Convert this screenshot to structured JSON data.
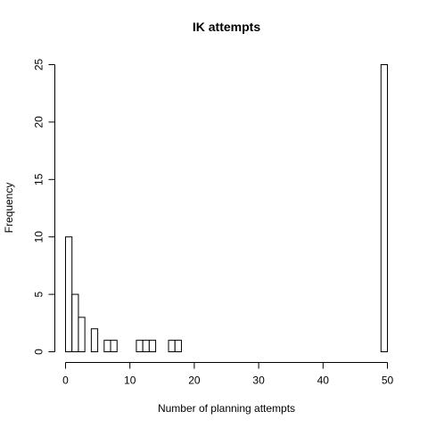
{
  "chart_data": {
    "type": "bar",
    "title": "IK attempts",
    "xlabel": "Number of planning attempts",
    "ylabel": "Frequency",
    "bin_width": 1,
    "xlim": [
      0,
      50
    ],
    "ylim": [
      0,
      25
    ],
    "x_ticks": [
      0,
      10,
      20,
      30,
      40,
      50
    ],
    "y_ticks": [
      0,
      5,
      10,
      15,
      20,
      25
    ],
    "bins": [
      {
        "x0": 0,
        "x1": 1,
        "count": 10
      },
      {
        "x0": 1,
        "x1": 2,
        "count": 5
      },
      {
        "x0": 2,
        "x1": 3,
        "count": 3
      },
      {
        "x0": 4,
        "x1": 5,
        "count": 2
      },
      {
        "x0": 6,
        "x1": 7,
        "count": 1
      },
      {
        "x0": 7,
        "x1": 8,
        "count": 1
      },
      {
        "x0": 11,
        "x1": 12,
        "count": 1
      },
      {
        "x0": 12,
        "x1": 13,
        "count": 1
      },
      {
        "x0": 13,
        "x1": 14,
        "count": 1
      },
      {
        "x0": 16,
        "x1": 17,
        "count": 1
      },
      {
        "x0": 17,
        "x1": 18,
        "count": 1
      },
      {
        "x0": 49,
        "x1": 50,
        "count": 25
      }
    ],
    "grid": false,
    "legend": "none"
  }
}
